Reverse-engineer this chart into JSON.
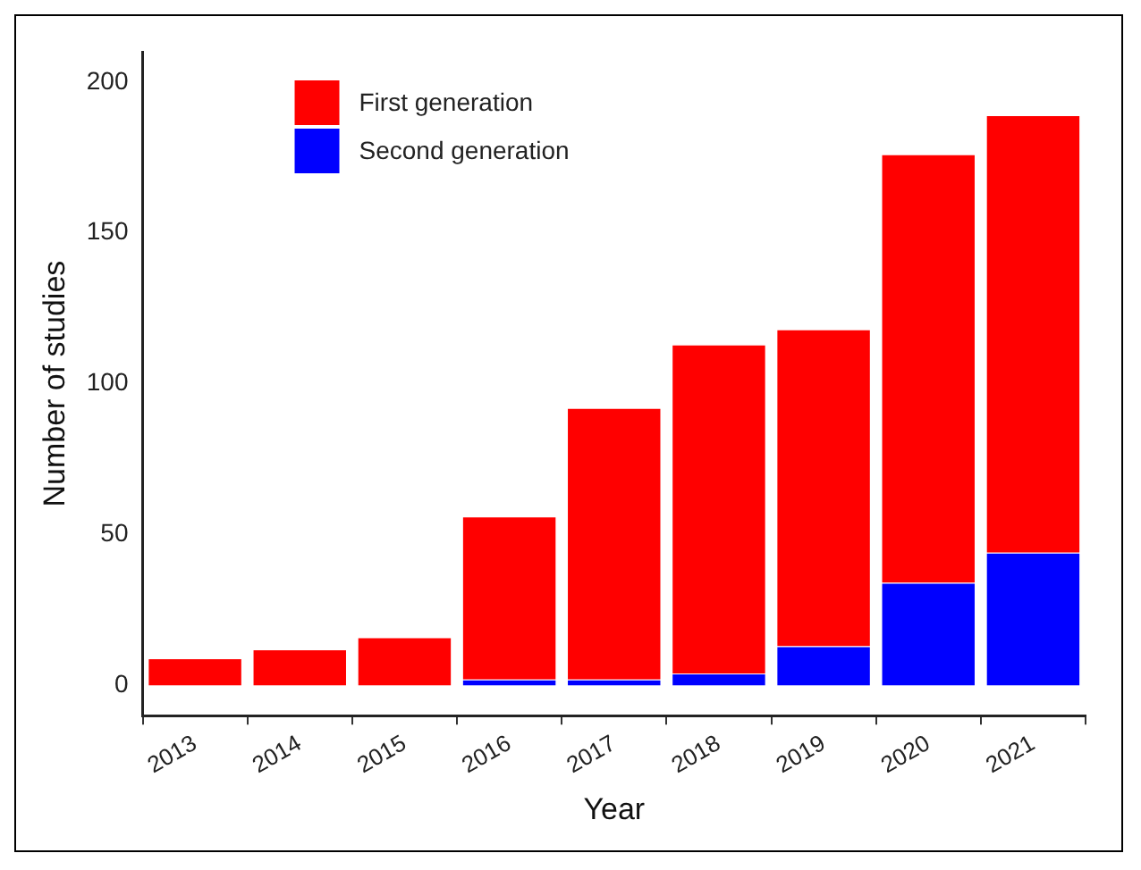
{
  "chart_data": {
    "type": "bar",
    "stacked": true,
    "xlabel": "Year",
    "ylabel": "Number of studies",
    "categories": [
      "2013",
      "2014",
      "2015",
      "2016",
      "2017",
      "2018",
      "2019",
      "2020",
      "2021"
    ],
    "series": [
      {
        "name": "Second generation",
        "color": "#0000ff",
        "values": [
          0,
          0,
          0,
          2,
          2,
          4,
          13,
          34,
          44
        ]
      },
      {
        "name": "First generation",
        "color": "#ff0000",
        "values": [
          9,
          12,
          16,
          54,
          90,
          109,
          105,
          142,
          145
        ]
      }
    ],
    "ylim": [
      -10,
      210
    ],
    "yticks": [
      0,
      50,
      100,
      150,
      200
    ],
    "grid": false,
    "legend": "top left"
  }
}
